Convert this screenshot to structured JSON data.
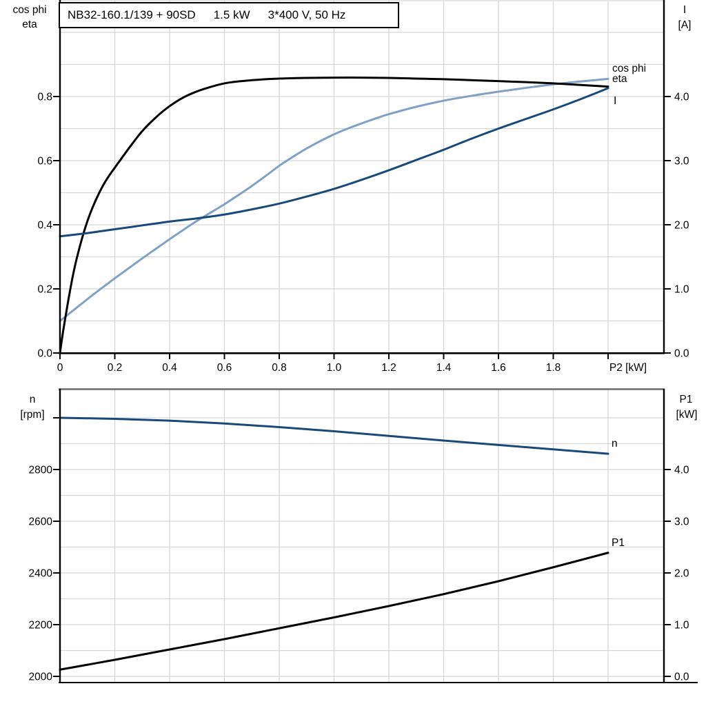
{
  "title_box": {
    "model": "NB32-160.1/139 + 90SD",
    "power": "1.5 kW",
    "supply": "3*400 V, 50 Hz"
  },
  "colors": {
    "black": "#000000",
    "dark_blue": "#17497a",
    "light_blue": "#7fa1c6",
    "grid": "#d6d6d6",
    "border_gray": "#6b6b6b",
    "background": "#ffffff"
  },
  "top_chart": {
    "left_axis_title": [
      "cos phi",
      "eta"
    ],
    "right_axis_title": [
      "I",
      "[A]"
    ],
    "x_axis_title": "P2 [kW]",
    "left_tick_labels": [
      {
        "v": 0.0,
        "t": "0.0"
      },
      {
        "v": 0.2,
        "t": "0.2"
      },
      {
        "v": 0.4,
        "t": "0.4"
      },
      {
        "v": 0.6,
        "t": "0.6"
      },
      {
        "v": 0.8,
        "t": "0.8"
      }
    ],
    "right_tick_labels": [
      {
        "v": 0.0,
        "t": "0.0"
      },
      {
        "v": 1.0,
        "t": "1.0"
      },
      {
        "v": 2.0,
        "t": "2.0"
      },
      {
        "v": 3.0,
        "t": "3.0"
      },
      {
        "v": 4.0,
        "t": "4.0"
      }
    ],
    "x_tick_labels": [
      {
        "v": 0,
        "t": "0"
      },
      {
        "v": 0.2,
        "t": "0.2"
      },
      {
        "v": 0.4,
        "t": "0.4"
      },
      {
        "v": 0.6,
        "t": "0.6"
      },
      {
        "v": 0.8,
        "t": "0.8"
      },
      {
        "v": 1.0,
        "t": "1.0"
      },
      {
        "v": 1.2,
        "t": "1.2"
      },
      {
        "v": 1.4,
        "t": "1.4"
      },
      {
        "v": 1.6,
        "t": "1.6"
      },
      {
        "v": 1.8,
        "t": "1.8"
      }
    ],
    "curve_labels": {
      "cos_phi": "cos phi",
      "eta": "eta",
      "current": "I"
    }
  },
  "bottom_chart": {
    "left_axis_title": [
      "n",
      "[rpm]"
    ],
    "right_axis_title": [
      "P1",
      "[kW]"
    ],
    "left_tick_labels": [
      {
        "v": 2000,
        "t": "2000"
      },
      {
        "v": 2200,
        "t": "2200"
      },
      {
        "v": 2400,
        "t": "2400"
      },
      {
        "v": 2600,
        "t": "2600"
      },
      {
        "v": 2800,
        "t": "2800"
      }
    ],
    "right_tick_labels": [
      {
        "v": 0.0,
        "t": "0.0"
      },
      {
        "v": 1.0,
        "t": "1.0"
      },
      {
        "v": 2.0,
        "t": "2.0"
      },
      {
        "v": 3.0,
        "t": "3.0"
      },
      {
        "v": 4.0,
        "t": "4.0"
      }
    ],
    "curve_labels": {
      "n": "n",
      "p1": "P1"
    }
  },
  "chart_data": [
    {
      "id": "top",
      "type": "line",
      "title": "NB32-160.1/139 + 90SD  1.5 kW  3*400 V, 50 Hz",
      "xlabel": "P2 [kW]",
      "x_range": [
        0,
        2.2
      ],
      "grid": true,
      "legend_position": "end-of-curve",
      "left_axis": {
        "label": "cos phi / eta",
        "range": [
          0,
          1.1
        ],
        "ticks": [
          0,
          0.2,
          0.4,
          0.6,
          0.8
        ],
        "minor_grid_step": 0.1
      },
      "right_axis": {
        "label": "I [A]",
        "range": [
          0,
          5.48
        ],
        "ticks": [
          0,
          1,
          2,
          3,
          4
        ]
      },
      "series": [
        {
          "name": "cos phi",
          "axis": "left",
          "color_key": "light_blue",
          "points": [
            [
              0,
              0.1
            ],
            [
              0.05,
              0.134
            ],
            [
              0.1,
              0.168
            ],
            [
              0.15,
              0.201
            ],
            [
              0.2,
              0.233
            ],
            [
              0.25,
              0.264
            ],
            [
              0.3,
              0.295
            ],
            [
              0.35,
              0.325
            ],
            [
              0.4,
              0.355
            ],
            [
              0.45,
              0.384
            ],
            [
              0.5,
              0.412
            ],
            [
              0.55,
              0.438
            ],
            [
              0.6,
              0.464
            ],
            [
              0.65,
              0.492
            ],
            [
              0.7,
              0.521
            ],
            [
              0.75,
              0.552
            ],
            [
              0.8,
              0.584
            ],
            [
              0.85,
              0.612
            ],
            [
              0.9,
              0.638
            ],
            [
              0.95,
              0.661
            ],
            [
              1.0,
              0.682
            ],
            [
              1.05,
              0.7
            ],
            [
              1.1,
              0.716
            ],
            [
              1.15,
              0.731
            ],
            [
              1.2,
              0.745
            ],
            [
              1.3,
              0.768
            ],
            [
              1.4,
              0.787
            ],
            [
              1.5,
              0.802
            ],
            [
              1.6,
              0.815
            ],
            [
              1.7,
              0.827
            ],
            [
              1.8,
              0.838
            ],
            [
              1.9,
              0.847
            ],
            [
              2.0,
              0.855
            ]
          ]
        },
        {
          "name": "eta",
          "axis": "left",
          "color_key": "black",
          "points": [
            [
              0,
              0
            ],
            [
              0.01,
              0.06
            ],
            [
              0.02,
              0.112
            ],
            [
              0.03,
              0.163
            ],
            [
              0.04,
              0.21
            ],
            [
              0.05,
              0.253
            ],
            [
              0.06,
              0.291
            ],
            [
              0.08,
              0.356
            ],
            [
              0.1,
              0.411
            ],
            [
              0.12,
              0.456
            ],
            [
              0.14,
              0.494
            ],
            [
              0.16,
              0.527
            ],
            [
              0.18,
              0.554
            ],
            [
              0.2,
              0.578
            ],
            [
              0.25,
              0.637
            ],
            [
              0.3,
              0.692
            ],
            [
              0.35,
              0.735
            ],
            [
              0.4,
              0.77
            ],
            [
              0.45,
              0.797
            ],
            [
              0.5,
              0.816
            ],
            [
              0.55,
              0.83
            ],
            [
              0.6,
              0.841
            ],
            [
              0.65,
              0.847
            ],
            [
              0.7,
              0.851
            ],
            [
              0.75,
              0.854
            ],
            [
              0.8,
              0.856
            ],
            [
              0.9,
              0.858
            ],
            [
              1.0,
              0.859
            ],
            [
              1.1,
              0.859
            ],
            [
              1.2,
              0.858
            ],
            [
              1.3,
              0.856
            ],
            [
              1.4,
              0.854
            ],
            [
              1.5,
              0.851
            ],
            [
              1.6,
              0.848
            ],
            [
              1.7,
              0.845
            ],
            [
              1.8,
              0.841
            ],
            [
              1.9,
              0.836
            ],
            [
              2.0,
              0.831
            ]
          ]
        },
        {
          "name": "I",
          "axis": "right",
          "color_key": "dark_blue",
          "points": [
            [
              0,
              1.82
            ],
            [
              0.1,
              1.87
            ],
            [
              0.2,
              1.93
            ],
            [
              0.3,
              1.99
            ],
            [
              0.4,
              2.05
            ],
            [
              0.5,
              2.1
            ],
            [
              0.6,
              2.16
            ],
            [
              0.7,
              2.24
            ],
            [
              0.8,
              2.33
            ],
            [
              0.9,
              2.44
            ],
            [
              1.0,
              2.56
            ],
            [
              1.1,
              2.7
            ],
            [
              1.2,
              2.85
            ],
            [
              1.3,
              3.01
            ],
            [
              1.4,
              3.17
            ],
            [
              1.5,
              3.34
            ],
            [
              1.6,
              3.5
            ],
            [
              1.7,
              3.65
            ],
            [
              1.8,
              3.8
            ],
            [
              1.9,
              3.96
            ],
            [
              2.0,
              4.13
            ]
          ]
        }
      ]
    },
    {
      "id": "bottom",
      "type": "line",
      "xlabel": "P2 [kW]",
      "x_range": [
        0,
        2.2
      ],
      "grid": true,
      "legend_position": "end-of-curve",
      "left_axis": {
        "label": "n [rpm]",
        "range": [
          1976,
          3110
        ],
        "ticks": [
          2000,
          2200,
          2400,
          2600,
          2800,
          3000
        ],
        "minor_grid_step": 100
      },
      "right_axis": {
        "label": "P1 [kW]",
        "range": [
          -0.12,
          5.55
        ],
        "ticks": [
          0,
          1,
          2,
          3,
          4
        ]
      },
      "series": [
        {
          "name": "n",
          "axis": "left",
          "color_key": "dark_blue",
          "points": [
            [
              0,
              3000
            ],
            [
              0.2,
              2996
            ],
            [
              0.4,
              2989
            ],
            [
              0.6,
              2978
            ],
            [
              0.8,
              2964
            ],
            [
              1.0,
              2948
            ],
            [
              1.2,
              2930
            ],
            [
              1.4,
              2912
            ],
            [
              1.6,
              2895
            ],
            [
              1.8,
              2878
            ],
            [
              2.0,
              2861
            ]
          ]
        },
        {
          "name": "P1",
          "axis": "right",
          "color_key": "black",
          "points": [
            [
              0,
              0.13
            ],
            [
              0.2,
              0.32
            ],
            [
              0.4,
              0.52
            ],
            [
              0.6,
              0.72
            ],
            [
              0.8,
              0.93
            ],
            [
              1.0,
              1.14
            ],
            [
              1.2,
              1.36
            ],
            [
              1.4,
              1.59
            ],
            [
              1.6,
              1.84
            ],
            [
              1.8,
              2.11
            ],
            [
              2.0,
              2.39
            ]
          ]
        }
      ]
    }
  ]
}
